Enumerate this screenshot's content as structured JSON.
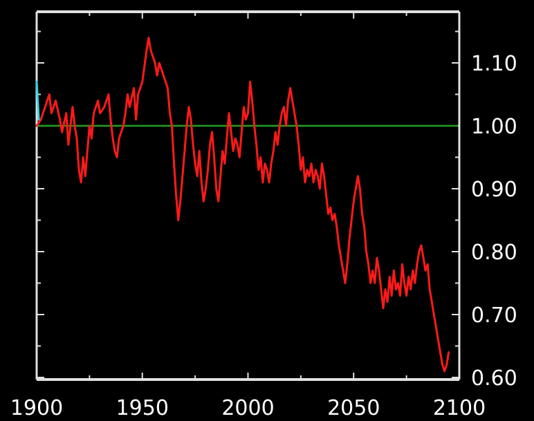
{
  "chart_data": {
    "type": "line",
    "title": "",
    "xlabel": "",
    "ylabel": "",
    "xlim": [
      1900,
      2100
    ],
    "ylim": [
      0.6,
      1.15
    ],
    "x_ticks": [
      1900,
      1950,
      2000,
      2050,
      2100
    ],
    "x_tick_labels": [
      "1900",
      "1950",
      "2000",
      "2050",
      "2100"
    ],
    "y_ticks": [
      0.6,
      0.7,
      0.8,
      0.9,
      1.0,
      1.1
    ],
    "y_tick_labels": [
      "0.60",
      "0.70",
      "0.80",
      "0.90",
      "1.00",
      "1.10"
    ],
    "y_axis_side": "right",
    "grid": false,
    "background_color": "#000000",
    "axis_color": "#e0e0e0",
    "reference_line": {
      "y": 1.0,
      "color": "#22a022"
    },
    "series": [
      {
        "color": "#ff1a1a",
        "points": [
          [
            1900,
            1.0
          ],
          [
            1902,
            1.01
          ],
          [
            1904,
            1.03
          ],
          [
            1906,
            1.05
          ],
          [
            1907,
            1.02
          ],
          [
            1909,
            1.04
          ],
          [
            1911,
            1.01
          ],
          [
            1912,
            0.99
          ],
          [
            1914,
            1.02
          ],
          [
            1915,
            0.97
          ],
          [
            1917,
            1.03
          ],
          [
            1918,
            1.0
          ],
          [
            1919,
            0.98
          ],
          [
            1920,
            0.93
          ],
          [
            1921,
            0.91
          ],
          [
            1922,
            0.95
          ],
          [
            1923,
            0.92
          ],
          [
            1924,
            0.96
          ],
          [
            1925,
            1.0
          ],
          [
            1926,
            0.98
          ],
          [
            1927,
            1.02
          ],
          [
            1929,
            1.04
          ],
          [
            1930,
            1.02
          ],
          [
            1932,
            1.03
          ],
          [
            1934,
            1.05
          ],
          [
            1935,
            1.01
          ],
          [
            1936,
            0.98
          ],
          [
            1937,
            0.96
          ],
          [
            1938,
            0.95
          ],
          [
            1939,
            0.98
          ],
          [
            1941,
            1.0
          ],
          [
            1942,
            1.02
          ],
          [
            1943,
            1.05
          ],
          [
            1944,
            1.03
          ],
          [
            1946,
            1.06
          ],
          [
            1947,
            1.01
          ],
          [
            1948,
            1.05
          ],
          [
            1950,
            1.07
          ],
          [
            1952,
            1.12
          ],
          [
            1953,
            1.14
          ],
          [
            1954,
            1.12
          ],
          [
            1956,
            1.1
          ],
          [
            1957,
            1.08
          ],
          [
            1958,
            1.1
          ],
          [
            1960,
            1.08
          ],
          [
            1961,
            1.07
          ],
          [
            1962,
            1.06
          ],
          [
            1963,
            1.02
          ],
          [
            1964,
            1.0
          ],
          [
            1965,
            0.94
          ],
          [
            1966,
            0.89
          ],
          [
            1967,
            0.85
          ],
          [
            1968,
            0.88
          ],
          [
            1969,
            0.92
          ],
          [
            1970,
            0.96
          ],
          [
            1971,
            1.0
          ],
          [
            1972,
            1.03
          ],
          [
            1973,
            1.01
          ],
          [
            1974,
            0.97
          ],
          [
            1975,
            0.94
          ],
          [
            1976,
            0.92
          ],
          [
            1977,
            0.96
          ],
          [
            1978,
            0.91
          ],
          [
            1979,
            0.88
          ],
          [
            1980,
            0.9
          ],
          [
            1981,
            0.93
          ],
          [
            1982,
            0.97
          ],
          [
            1983,
            0.99
          ],
          [
            1984,
            0.95
          ],
          [
            1985,
            0.9
          ],
          [
            1986,
            0.88
          ],
          [
            1987,
            0.92
          ],
          [
            1988,
            0.96
          ],
          [
            1989,
            0.94
          ],
          [
            1990,
            0.98
          ],
          [
            1991,
            1.02
          ],
          [
            1992,
            0.99
          ],
          [
            1993,
            0.96
          ],
          [
            1994,
            0.98
          ],
          [
            1995,
            0.97
          ],
          [
            1996,
            0.95
          ],
          [
            1997,
            0.99
          ],
          [
            1998,
            1.03
          ],
          [
            1999,
            1.01
          ],
          [
            2000,
            1.02
          ],
          [
            2001,
            1.07
          ],
          [
            2002,
            1.04
          ],
          [
            2003,
            1.0
          ],
          [
            2004,
            0.97
          ],
          [
            2005,
            0.93
          ],
          [
            2006,
            0.95
          ],
          [
            2007,
            0.91
          ],
          [
            2008,
            0.94
          ],
          [
            2009,
            0.93
          ],
          [
            2010,
            0.91
          ],
          [
            2011,
            0.94
          ],
          [
            2012,
            0.96
          ],
          [
            2013,
            0.99
          ],
          [
            2014,
            0.97
          ],
          [
            2015,
            1.0
          ],
          [
            2016,
            1.02
          ],
          [
            2017,
            1.03
          ],
          [
            2018,
            1.0
          ],
          [
            2019,
            1.04
          ],
          [
            2020,
            1.06
          ],
          [
            2021,
            1.04
          ],
          [
            2022,
            1.02
          ],
          [
            2023,
            1.0
          ],
          [
            2024,
            0.97
          ],
          [
            2025,
            0.93
          ],
          [
            2026,
            0.95
          ],
          [
            2027,
            0.91
          ],
          [
            2028,
            0.93
          ],
          [
            2029,
            0.92
          ],
          [
            2030,
            0.94
          ],
          [
            2031,
            0.91
          ],
          [
            2032,
            0.93
          ],
          [
            2033,
            0.92
          ],
          [
            2034,
            0.9
          ],
          [
            2035,
            0.94
          ],
          [
            2036,
            0.92
          ],
          [
            2037,
            0.89
          ],
          [
            2038,
            0.86
          ],
          [
            2039,
            0.87
          ],
          [
            2040,
            0.85
          ],
          [
            2041,
            0.86
          ],
          [
            2042,
            0.84
          ],
          [
            2043,
            0.81
          ],
          [
            2044,
            0.79
          ],
          [
            2045,
            0.77
          ],
          [
            2046,
            0.75
          ],
          [
            2047,
            0.78
          ],
          [
            2048,
            0.82
          ],
          [
            2049,
            0.85
          ],
          [
            2050,
            0.88
          ],
          [
            2051,
            0.9
          ],
          [
            2052,
            0.92
          ],
          [
            2053,
            0.9
          ],
          [
            2054,
            0.86
          ],
          [
            2055,
            0.84
          ],
          [
            2056,
            0.8
          ],
          [
            2057,
            0.78
          ],
          [
            2058,
            0.75
          ],
          [
            2059,
            0.77
          ],
          [
            2060,
            0.75
          ],
          [
            2061,
            0.79
          ],
          [
            2062,
            0.77
          ],
          [
            2063,
            0.74
          ],
          [
            2064,
            0.71
          ],
          [
            2065,
            0.74
          ],
          [
            2066,
            0.72
          ],
          [
            2067,
            0.76
          ],
          [
            2068,
            0.73
          ],
          [
            2069,
            0.77
          ],
          [
            2070,
            0.74
          ],
          [
            2071,
            0.75
          ],
          [
            2072,
            0.73
          ],
          [
            2073,
            0.78
          ],
          [
            2074,
            0.75
          ],
          [
            2075,
            0.73
          ],
          [
            2076,
            0.76
          ],
          [
            2077,
            0.74
          ],
          [
            2078,
            0.77
          ],
          [
            2079,
            0.75
          ],
          [
            2080,
            0.78
          ],
          [
            2081,
            0.8
          ],
          [
            2082,
            0.81
          ],
          [
            2083,
            0.79
          ],
          [
            2084,
            0.77
          ],
          [
            2085,
            0.78
          ],
          [
            2086,
            0.74
          ],
          [
            2087,
            0.72
          ],
          [
            2088,
            0.7
          ],
          [
            2089,
            0.68
          ],
          [
            2090,
            0.66
          ],
          [
            2091,
            0.64
          ],
          [
            2092,
            0.62
          ],
          [
            2093,
            0.61
          ],
          [
            2094,
            0.62
          ],
          [
            2095,
            0.64
          ]
        ]
      },
      {
        "color": "#33d6e6",
        "points": [
          [
            1900,
            1.07
          ],
          [
            1901,
            1.01
          ]
        ]
      }
    ]
  }
}
